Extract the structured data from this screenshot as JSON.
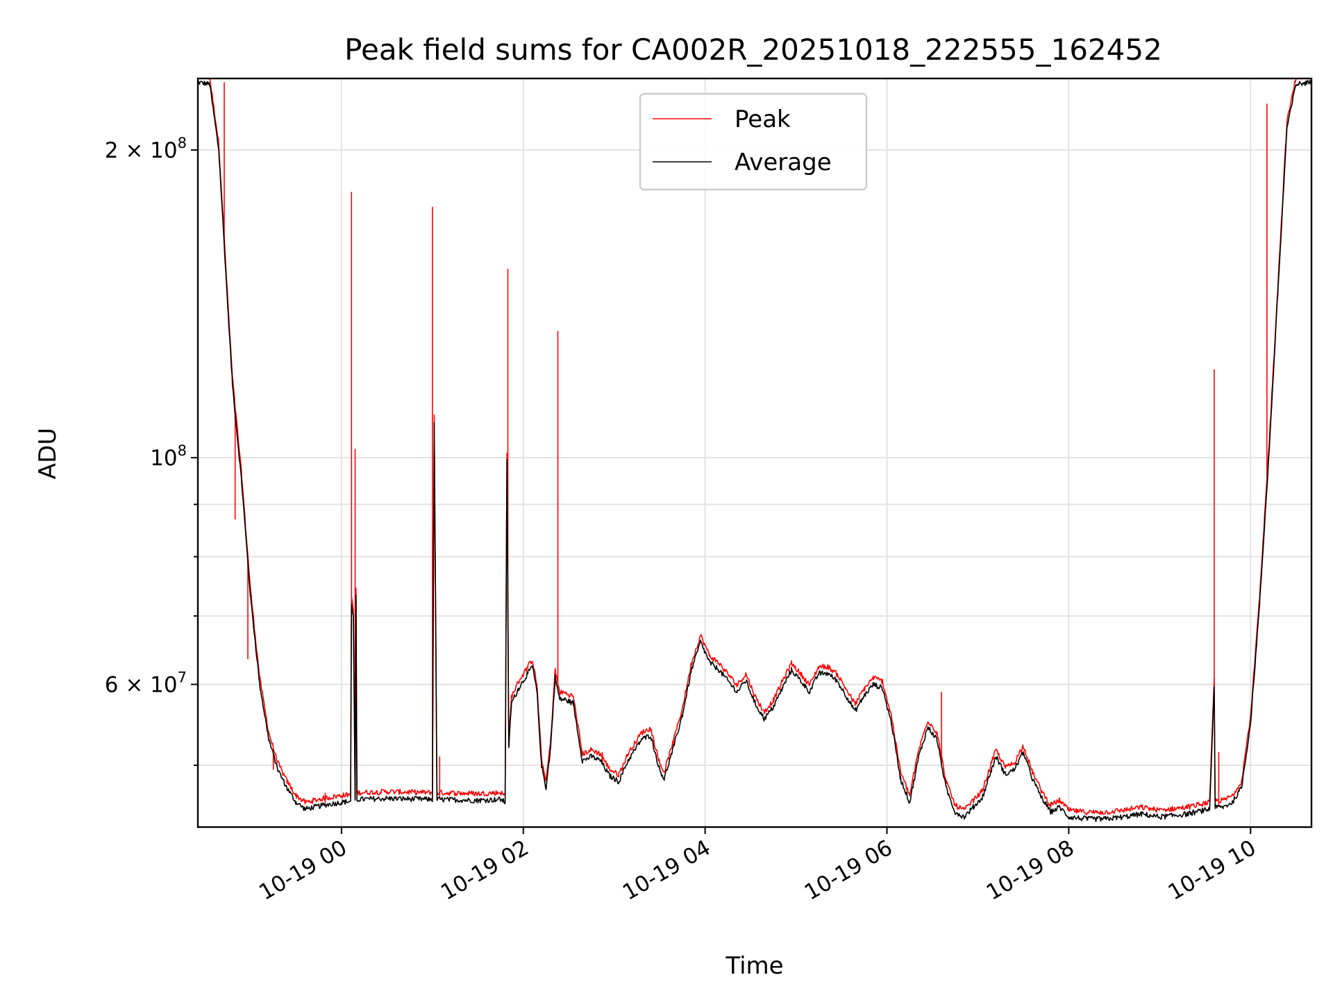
{
  "chart_data": {
    "type": "line",
    "title": "Peak field sums for CA002R_20251018_222555_162452",
    "xlabel": "Time",
    "ylabel": "ADU",
    "yscale": "log",
    "ylim": [
      43500000,
      235000000
    ],
    "xlim_hours": [
      -1.58,
      10.67
    ],
    "grid": true,
    "legend_position": "upper center",
    "x_ticks": [
      {
        "value": 0,
        "label": "10-19 00"
      },
      {
        "value": 2,
        "label": "10-19 02"
      },
      {
        "value": 4,
        "label": "10-19 04"
      },
      {
        "value": 6,
        "label": "10-19 06"
      },
      {
        "value": 8,
        "label": "10-19 08"
      },
      {
        "value": 10,
        "label": "10-19 10"
      }
    ],
    "y_major_ticks": [
      {
        "value": 60000000,
        "mantissa": "6 × 10",
        "exp": "7"
      },
      {
        "value": 100000000,
        "mantissa": "10",
        "exp": "8"
      },
      {
        "value": 200000000,
        "mantissa": "2 × 10",
        "exp": "8"
      }
    ],
    "y_minor_ticks": [
      50000000,
      70000000,
      80000000,
      90000000
    ],
    "series": [
      {
        "name": "Average",
        "color": "#000000",
        "points": [
          [
            -1.58,
            233000000
          ],
          [
            -1.45,
            232000000
          ],
          [
            -1.35,
            200000000
          ],
          [
            -1.25,
            140000000
          ],
          [
            -1.2,
            118000000
          ],
          [
            -1.1,
            95000000
          ],
          [
            -1.0,
            73000000
          ],
          [
            -0.9,
            60000000
          ],
          [
            -0.8,
            53000000
          ],
          [
            -0.7,
            49500000
          ],
          [
            -0.6,
            47500000
          ],
          [
            -0.5,
            46000000
          ],
          [
            -0.4,
            45300000
          ],
          [
            -0.3,
            45500000
          ],
          [
            -0.2,
            45700000
          ],
          [
            0.0,
            46000000
          ],
          [
            0.1,
            46100000
          ],
          [
            0.11,
            72000000
          ],
          [
            0.13,
            70000000
          ],
          [
            0.15,
            46300000
          ],
          [
            0.16,
            73000000
          ],
          [
            0.17,
            46300000
          ],
          [
            0.5,
            46400000
          ],
          [
            1.0,
            46300000
          ],
          [
            1.02,
            108000000
          ],
          [
            1.05,
            46300000
          ],
          [
            1.5,
            46200000
          ],
          [
            1.75,
            46300000
          ],
          [
            1.8,
            46000000
          ],
          [
            1.82,
            100000000
          ],
          [
            1.84,
            52000000
          ],
          [
            1.87,
            57500000
          ],
          [
            1.95,
            59500000
          ],
          [
            2.05,
            61500000
          ],
          [
            2.1,
            62500000
          ],
          [
            2.15,
            59000000
          ],
          [
            2.2,
            50000000
          ],
          [
            2.25,
            47500000
          ],
          [
            2.3,
            52000000
          ],
          [
            2.35,
            61000000
          ],
          [
            2.4,
            58000000
          ],
          [
            2.45,
            58000000
          ],
          [
            2.55,
            57500000
          ],
          [
            2.65,
            50500000
          ],
          [
            2.75,
            51000000
          ],
          [
            2.85,
            50500000
          ],
          [
            2.95,
            48800000
          ],
          [
            3.05,
            48200000
          ],
          [
            3.15,
            50500000
          ],
          [
            3.3,
            53000000
          ],
          [
            3.4,
            53500000
          ],
          [
            3.5,
            49500000
          ],
          [
            3.55,
            48500000
          ],
          [
            3.65,
            52000000
          ],
          [
            3.75,
            56000000
          ],
          [
            3.85,
            62000000
          ],
          [
            3.95,
            66000000
          ],
          [
            4.05,
            63000000
          ],
          [
            4.15,
            62000000
          ],
          [
            4.25,
            60500000
          ],
          [
            4.35,
            59000000
          ],
          [
            4.45,
            60500000
          ],
          [
            4.55,
            57500000
          ],
          [
            4.65,
            55500000
          ],
          [
            4.75,
            57000000
          ],
          [
            4.85,
            59500000
          ],
          [
            4.95,
            62000000
          ],
          [
            5.05,
            60500000
          ],
          [
            5.15,
            59000000
          ],
          [
            5.25,
            61500000
          ],
          [
            5.35,
            61500000
          ],
          [
            5.45,
            60500000
          ],
          [
            5.55,
            58500000
          ],
          [
            5.65,
            56500000
          ],
          [
            5.75,
            58500000
          ],
          [
            5.85,
            60000000
          ],
          [
            5.95,
            59500000
          ],
          [
            6.05,
            55000000
          ],
          [
            6.15,
            48500000
          ],
          [
            6.25,
            46000000
          ],
          [
            6.35,
            51000000
          ],
          [
            6.45,
            54500000
          ],
          [
            6.55,
            53000000
          ],
          [
            6.65,
            47500000
          ],
          [
            6.75,
            45000000
          ],
          [
            6.85,
            44500000
          ],
          [
            6.95,
            45500000
          ],
          [
            7.05,
            46500000
          ],
          [
            7.15,
            49500000
          ],
          [
            7.2,
            51000000
          ],
          [
            7.3,
            49000000
          ],
          [
            7.4,
            49500000
          ],
          [
            7.5,
            51500000
          ],
          [
            7.6,
            48500000
          ],
          [
            7.7,
            46500000
          ],
          [
            7.8,
            45000000
          ],
          [
            7.9,
            45500000
          ],
          [
            8.0,
            44500000
          ],
          [
            8.2,
            44300000
          ],
          [
            8.4,
            44300000
          ],
          [
            8.6,
            44500000
          ],
          [
            8.8,
            44800000
          ],
          [
            9.0,
            44500000
          ],
          [
            9.3,
            44800000
          ],
          [
            9.5,
            45200000
          ],
          [
            9.55,
            45300000
          ],
          [
            9.6,
            60000000
          ],
          [
            9.61,
            45500000
          ],
          [
            9.7,
            45500000
          ],
          [
            9.8,
            46000000
          ],
          [
            9.9,
            47500000
          ],
          [
            10.0,
            55000000
          ],
          [
            10.1,
            72000000
          ],
          [
            10.2,
            100000000
          ],
          [
            10.3,
            145000000
          ],
          [
            10.4,
            210000000
          ],
          [
            10.5,
            232000000
          ],
          [
            10.67,
            233000000
          ]
        ]
      },
      {
        "name": "Peak",
        "color": "#ff0000",
        "spikes": [
          [
            -1.29,
            233000000
          ],
          [
            -1.17,
            87000000
          ],
          [
            -1.03,
            63500000
          ],
          [
            -0.75,
            49500000
          ],
          [
            -0.18,
            47000000
          ],
          [
            0.11,
            182000000
          ],
          [
            0.15,
            102000000
          ],
          [
            1.0,
            176000000
          ],
          [
            1.08,
            51000000
          ],
          [
            1.83,
            153000000
          ],
          [
            2.38,
            133000000
          ],
          [
            2.87,
            51500000
          ],
          [
            6.6,
            59000000
          ],
          [
            9.6,
            122000000
          ],
          [
            9.65,
            51500000
          ],
          [
            10.18,
            222000000
          ]
        ],
        "offset_ratio": 1.013
      }
    ]
  }
}
